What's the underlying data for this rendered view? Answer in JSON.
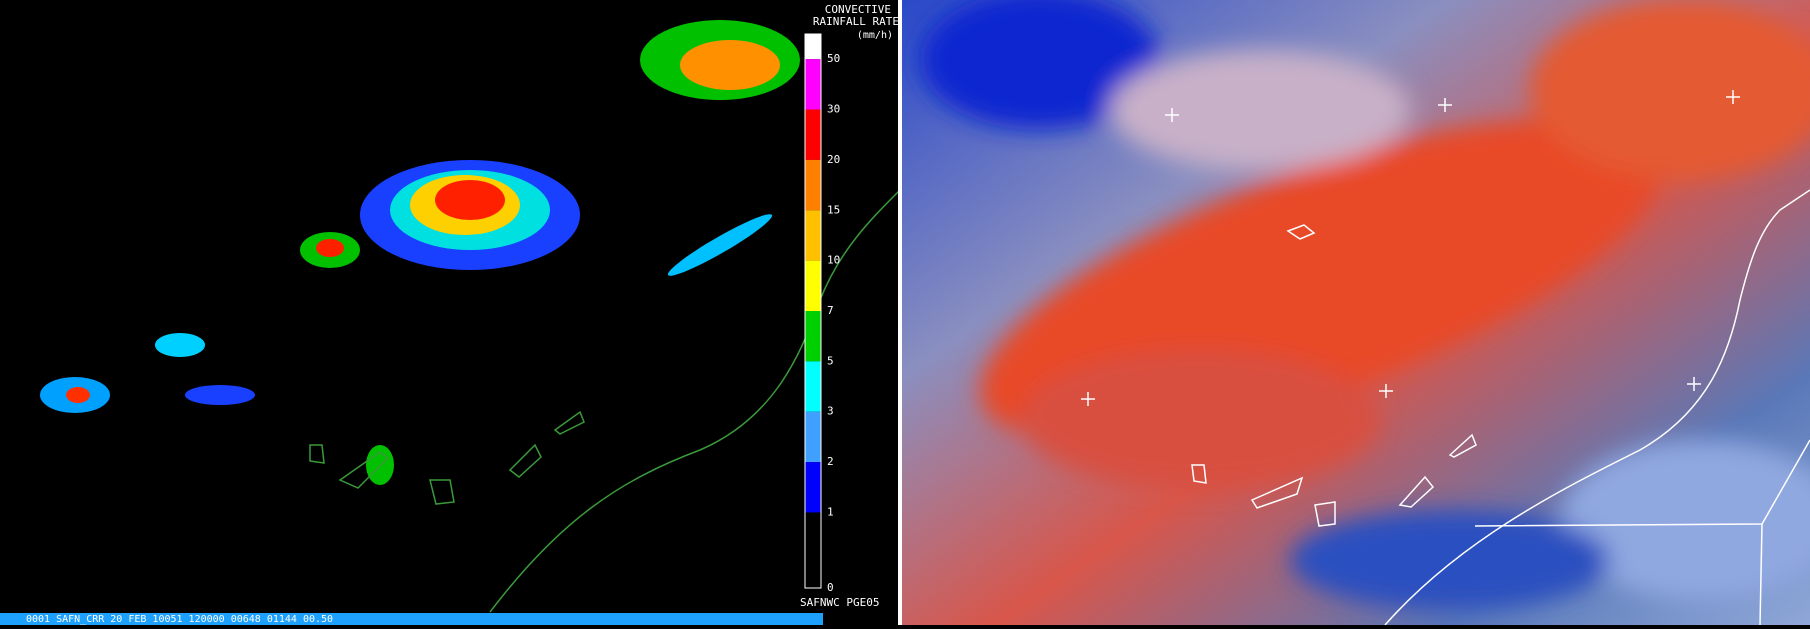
{
  "left_panel": {
    "title_lines": [
      "CONVECTIVE",
      "RAINFALL RATE"
    ],
    "unit": "(mm/h)",
    "legend": {
      "labels": [
        "50",
        "30",
        "20",
        "15",
        "10",
        "7",
        "5",
        "3",
        "2",
        "1",
        "0"
      ],
      "colors": [
        "#ffffff",
        "#ff00ff",
        "#ff0000",
        "#ff8000",
        "#ffc000",
        "#ffff00",
        "#00d000",
        "#00ffff",
        "#40a0ff",
        "#0000ff",
        "#000000"
      ]
    },
    "footer": "SAFNWC PGE05",
    "status_bar": "0001 SAFN_CRR     20 FEB 10051 120000 00648 01144 00.50"
  }
}
